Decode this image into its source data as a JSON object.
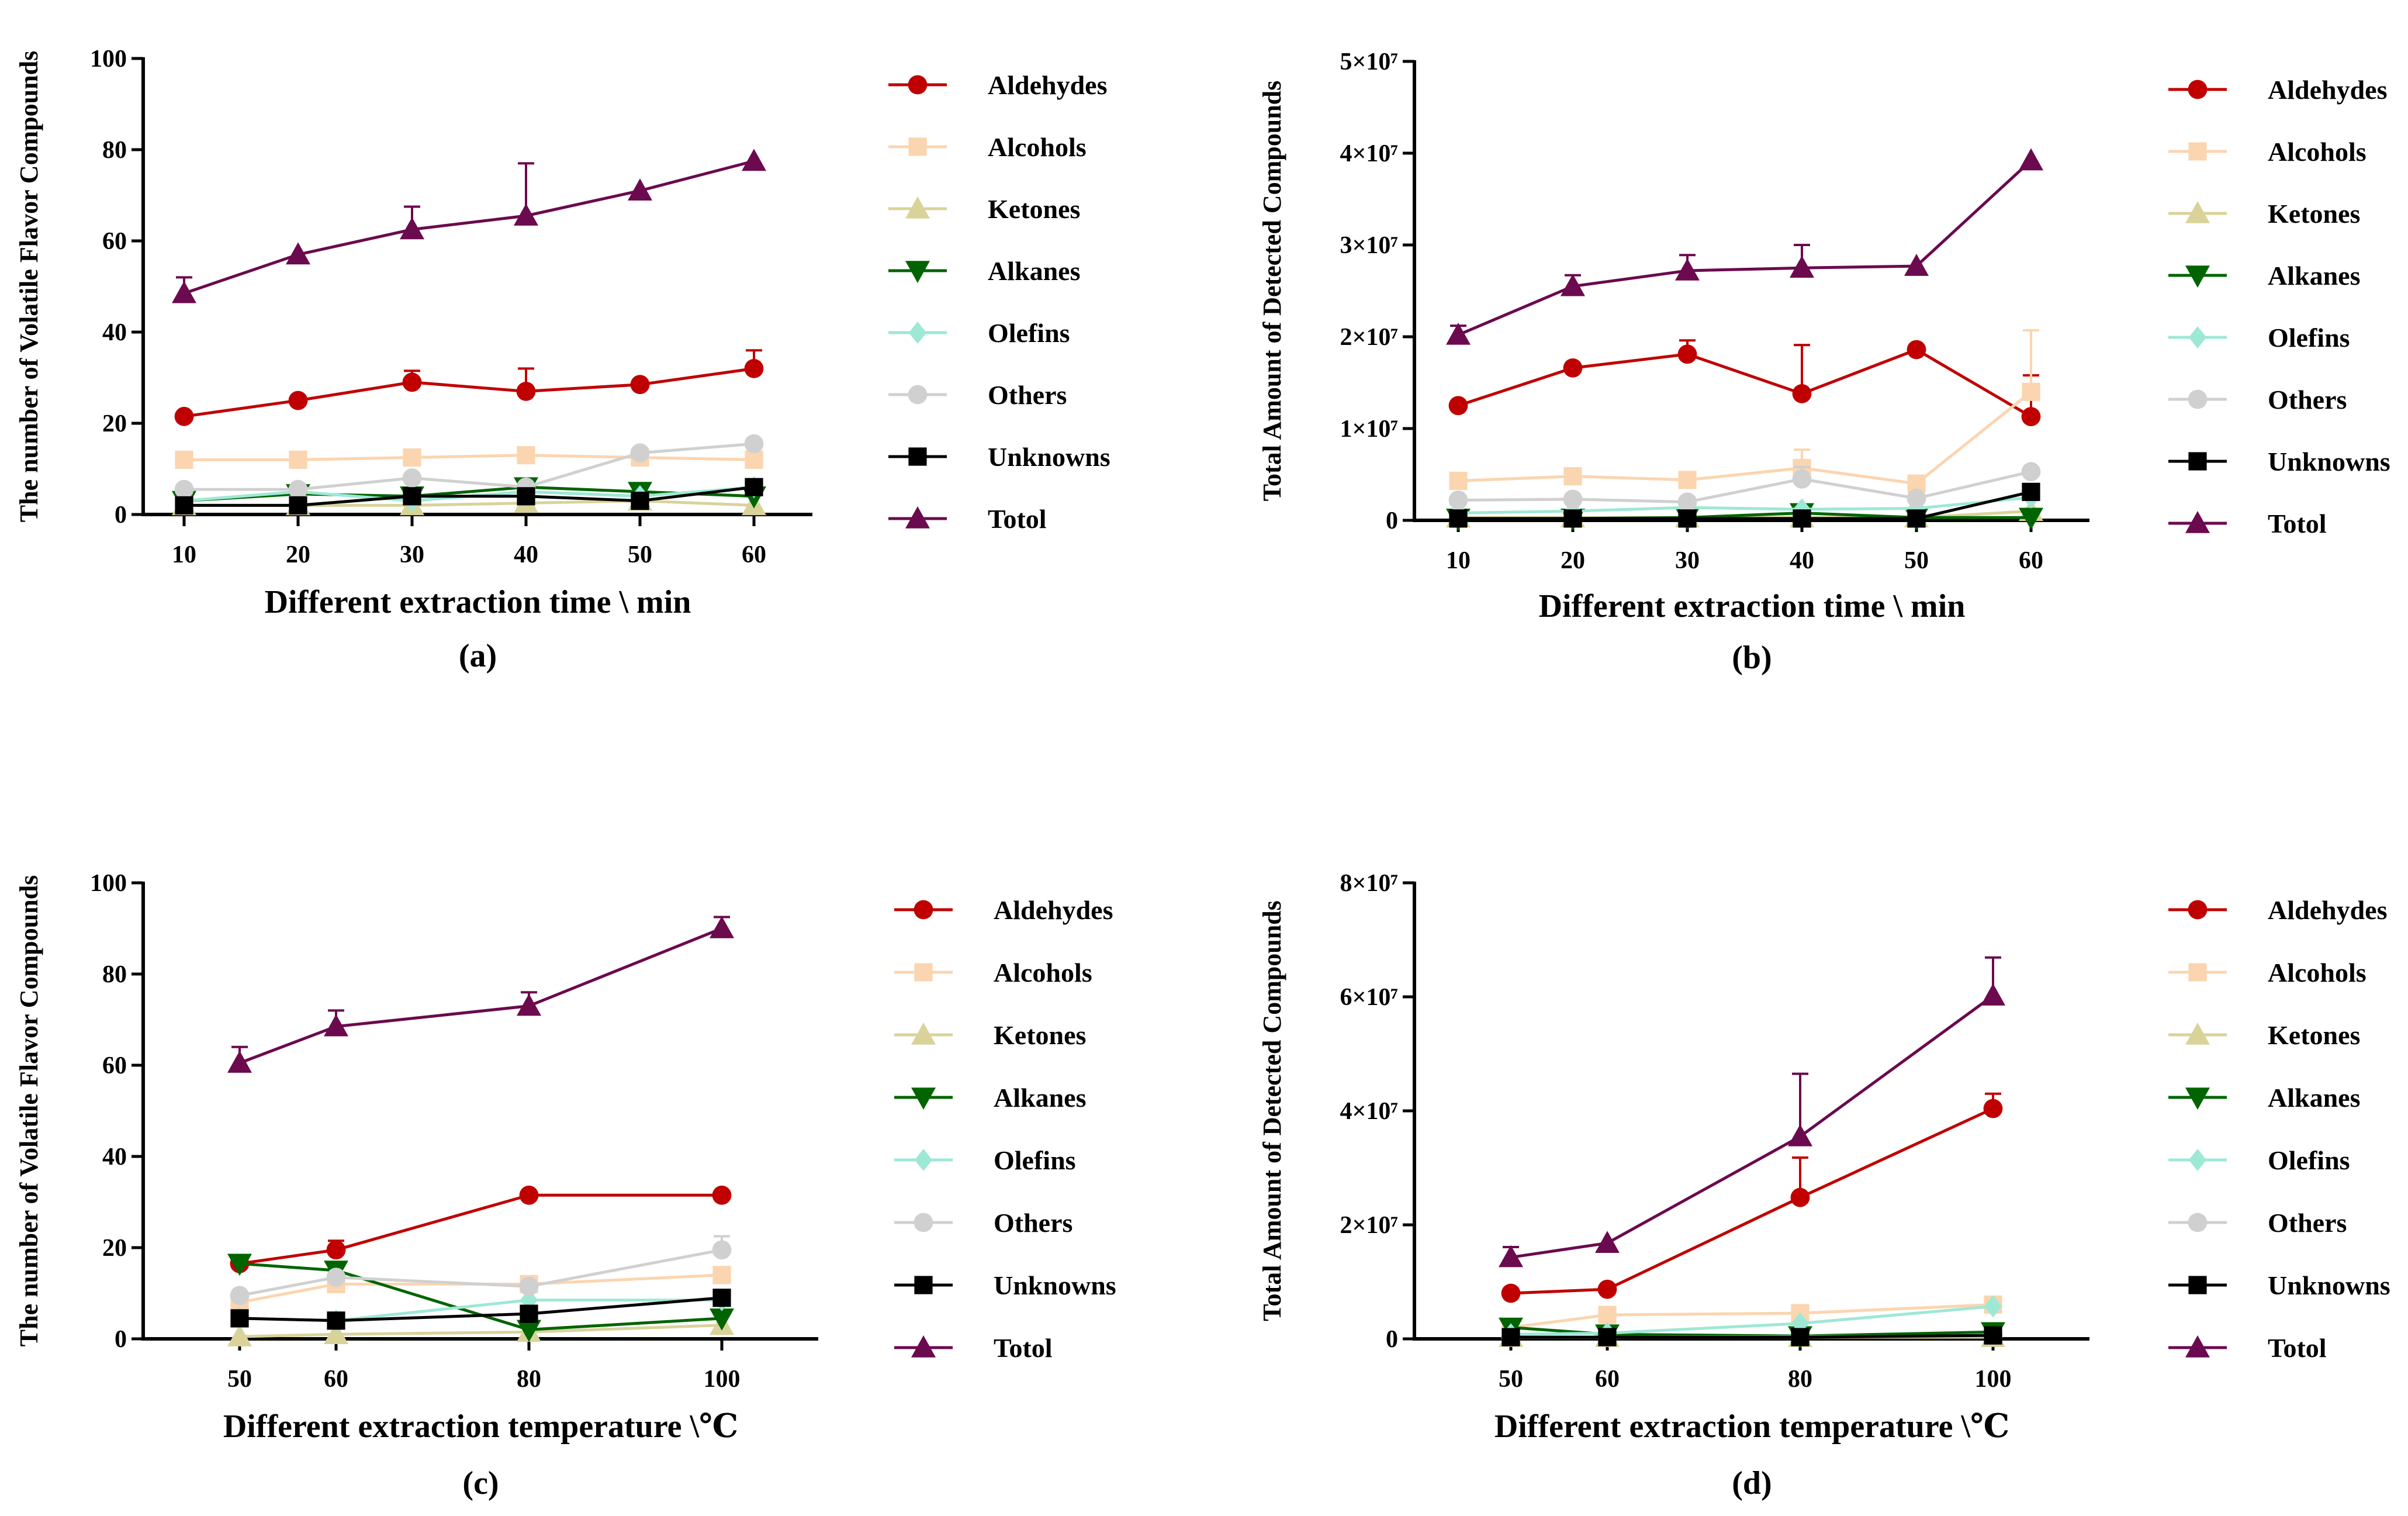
{
  "colors": {
    "Aldehydes": "#c00000",
    "Alcohols": "#fbd5b0",
    "Ketones": "#d9d39a",
    "Alkanes": "#006400",
    "Olefins": "#9ee8d6",
    "Others": "#d0d0d0",
    "Unknowns": "#000000",
    "Totol": "#6b0a4e"
  },
  "markers": {
    "Aldehydes": "circle",
    "Alcohols": "square",
    "Ketones": "triangle-up",
    "Alkanes": "triangle-down",
    "Olefins": "diamond",
    "Others": "circle",
    "Unknowns": "square",
    "Totol": "triangle-up"
  },
  "chart_data": [
    {
      "panel": "(a)",
      "type": "line",
      "xlabel": "Different extraction time \\ min",
      "ylabel": "The number of Volatile Flavor Compounds",
      "categories": [
        "10",
        "20",
        "30",
        "40",
        "50",
        "60"
      ],
      "yticks": [
        "0",
        "20",
        "40",
        "60",
        "80",
        "100"
      ],
      "ylim": [
        0,
        100
      ],
      "legend_position": "right",
      "series": [
        {
          "name": "Aldehydes",
          "values": [
            21.5,
            25,
            29,
            27,
            28.5,
            32
          ],
          "err": [
            0,
            0,
            2.5,
            5,
            0,
            4
          ]
        },
        {
          "name": "Alcohols",
          "values": [
            12,
            12,
            12.5,
            13,
            12.5,
            12
          ],
          "err": [
            0,
            0,
            0,
            0,
            0,
            0
          ]
        },
        {
          "name": "Ketones",
          "values": [
            2,
            2,
            2,
            2.5,
            3,
            2
          ],
          "err": [
            0,
            0,
            0,
            0,
            0,
            0
          ]
        },
        {
          "name": "Alkanes",
          "values": [
            3,
            4.5,
            4,
            6,
            5,
            4
          ],
          "err": [
            0,
            0,
            0,
            0,
            0,
            0
          ]
        },
        {
          "name": "Olefins",
          "values": [
            3,
            5,
            3,
            5,
            4,
            6
          ],
          "err": [
            0,
            0,
            0,
            0,
            0,
            0
          ]
        },
        {
          "name": "Others",
          "values": [
            5.5,
            5.5,
            8,
            6,
            13.5,
            15.5
          ],
          "err": [
            0,
            0,
            0,
            0,
            0,
            0
          ]
        },
        {
          "name": "Unknowns",
          "values": [
            2,
            2,
            4,
            4,
            3,
            6
          ],
          "err": [
            0,
            0,
            0,
            0,
            0,
            0
          ]
        },
        {
          "name": "Totol",
          "values": [
            48.5,
            57,
            62.5,
            65.5,
            71,
            77.5
          ],
          "err": [
            3.5,
            0,
            5,
            11.5,
            0,
            0
          ]
        }
      ]
    },
    {
      "panel": "(b)",
      "type": "line",
      "xlabel": "Different extraction time \\ min",
      "ylabel": "Total Amount of Detected Compounds",
      "categories": [
        "10",
        "20",
        "30",
        "40",
        "50",
        "60"
      ],
      "yticks": [
        "0",
        "1×10⁷",
        "2×10⁷",
        "3×10⁷",
        "4×10⁷",
        "5×10⁷"
      ],
      "ylim": [
        0,
        50000000
      ],
      "legend_position": "right",
      "series": [
        {
          "name": "Aldehydes",
          "values": [
            12500000,
            16600000,
            18100000,
            13800000,
            18600000,
            11300000
          ],
          "err": [
            0,
            0,
            1500000,
            5300000,
            0,
            4500000
          ]
        },
        {
          "name": "Alcohols",
          "values": [
            4300000,
            4800000,
            4400000,
            5700000,
            4000000,
            14000000
          ],
          "err": [
            0,
            0,
            0,
            2000000,
            0,
            6700000
          ]
        },
        {
          "name": "Ketones",
          "values": [
            300000,
            300000,
            300000,
            300000,
            300000,
            1000000
          ],
          "err": [
            0,
            0,
            0,
            0,
            0,
            0
          ]
        },
        {
          "name": "Alkanes",
          "values": [
            200000,
            200000,
            300000,
            800000,
            300000,
            300000
          ],
          "err": [
            0,
            0,
            0,
            0,
            0,
            0
          ]
        },
        {
          "name": "Olefins",
          "values": [
            800000,
            1000000,
            1400000,
            1200000,
            1300000,
            2500000
          ],
          "err": [
            0,
            0,
            0,
            0,
            0,
            0
          ]
        },
        {
          "name": "Others",
          "values": [
            2200000,
            2300000,
            2000000,
            4500000,
            2400000,
            5300000
          ],
          "err": [
            0,
            0,
            0,
            1300000,
            0,
            0
          ]
        },
        {
          "name": "Unknowns",
          "values": [
            200000,
            200000,
            200000,
            200000,
            200000,
            3100000
          ],
          "err": [
            0,
            0,
            0,
            0,
            0,
            0
          ]
        },
        {
          "name": "Totol",
          "values": [
            20200000,
            25500000,
            27200000,
            27500000,
            27700000,
            39200000
          ],
          "err": [
            1000000,
            1200000,
            1700000,
            2500000,
            0,
            0
          ]
        }
      ]
    },
    {
      "panel": "(c)",
      "type": "line",
      "xlabel": "Different extraction temperature \\℃",
      "ylabel": "The number of Volatile Flavor Compounds",
      "categories": [
        "50",
        "60",
        "80",
        "100"
      ],
      "x": [
        50,
        60,
        80,
        100
      ],
      "xlim": [
        40,
        110
      ],
      "yticks": [
        "0",
        "20",
        "40",
        "60",
        "80",
        "100"
      ],
      "ylim": [
        0,
        100
      ],
      "legend_position": "right",
      "series": [
        {
          "name": "Aldehydes",
          "values": [
            16.5,
            19.5,
            31.5,
            31.5
          ],
          "err": [
            1.5,
            2,
            0,
            0
          ]
        },
        {
          "name": "Alcohols",
          "values": [
            8,
            12,
            12,
            14
          ],
          "err": [
            0,
            0,
            0,
            0
          ]
        },
        {
          "name": "Ketones",
          "values": [
            0.5,
            1,
            1.5,
            3
          ],
          "err": [
            0,
            0,
            0,
            0
          ]
        },
        {
          "name": "Alkanes",
          "values": [
            16.5,
            15,
            2,
            4.5
          ],
          "err": [
            0,
            0,
            0,
            0
          ]
        },
        {
          "name": "Olefins",
          "values": [
            4.5,
            4,
            8.5,
            8.5
          ],
          "err": [
            0,
            0,
            0,
            0
          ]
        },
        {
          "name": "Others",
          "values": [
            9.5,
            13.5,
            11.5,
            19.5
          ],
          "err": [
            0,
            0,
            0,
            3
          ]
        },
        {
          "name": "Unknowns",
          "values": [
            4.5,
            4,
            5.5,
            9
          ],
          "err": [
            0,
            0,
            0,
            0
          ]
        },
        {
          "name": "Totol",
          "values": [
            60.5,
            68.5,
            73,
            90
          ],
          "err": [
            3.5,
            3.5,
            3,
            2.5
          ]
        }
      ]
    },
    {
      "panel": "(d)",
      "type": "line",
      "xlabel": "Different extraction temperature \\℃",
      "ylabel": "Total Amount of Detected Compounds",
      "categories": [
        "50",
        "60",
        "80",
        "100"
      ],
      "x": [
        50,
        60,
        80,
        100
      ],
      "xlim": [
        40,
        110
      ],
      "yticks": [
        "0",
        "2×10⁷",
        "4×10⁷",
        "6×10⁷",
        "8×10⁷"
      ],
      "ylim": [
        0,
        80000000
      ],
      "legend_position": "right",
      "series": [
        {
          "name": "Aldehydes",
          "values": [
            8000000,
            8700000,
            24800000,
            40400000
          ],
          "err": [
            0,
            0,
            7000000,
            2600000
          ]
        },
        {
          "name": "Alcohols",
          "values": [
            2000000,
            4200000,
            4500000,
            6000000
          ],
          "err": [
            0,
            0,
            0,
            0
          ]
        },
        {
          "name": "Ketones",
          "values": [
            300000,
            300000,
            300000,
            300000
          ],
          "err": [
            0,
            0,
            0,
            0
          ]
        },
        {
          "name": "Alkanes",
          "values": [
            2000000,
            800000,
            500000,
            1200000
          ],
          "err": [
            0,
            0,
            0,
            0
          ]
        },
        {
          "name": "Olefins",
          "values": [
            800000,
            1000000,
            2700000,
            5700000
          ],
          "err": [
            0,
            0,
            0,
            0
          ]
        },
        {
          "name": "Others",
          "values": [
            300000,
            300000,
            400000,
            500000
          ],
          "err": [
            0,
            0,
            0,
            0
          ]
        },
        {
          "name": "Unknowns",
          "values": [
            300000,
            300000,
            300000,
            600000
          ],
          "err": [
            0,
            0,
            0,
            0
          ]
        },
        {
          "name": "Totol",
          "values": [
            14300000,
            16800000,
            35500000,
            60200000
          ],
          "err": [
            1800000,
            0,
            11000000,
            6700000
          ]
        }
      ]
    }
  ]
}
